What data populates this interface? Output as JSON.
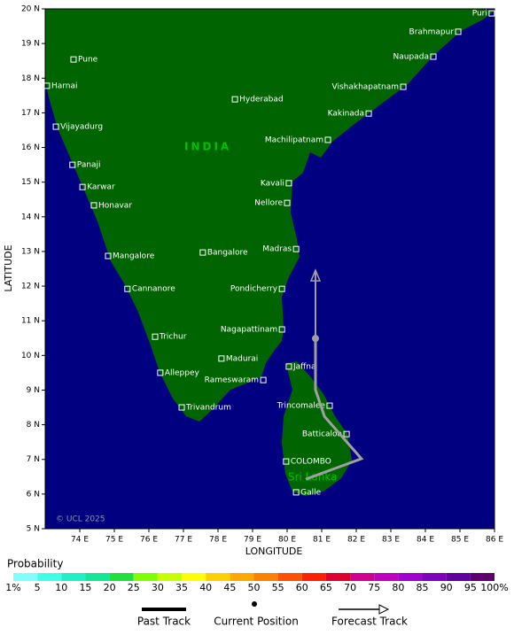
{
  "map": {
    "xlim": [
      73,
      86
    ],
    "ylim": [
      5,
      20
    ],
    "xticks": [
      {
        "value": 74,
        "label": "74 E"
      },
      {
        "value": 75,
        "label": "75 E"
      },
      {
        "value": 76,
        "label": "76 E"
      },
      {
        "value": 77,
        "label": "77 E"
      },
      {
        "value": 78,
        "label": "78 E"
      },
      {
        "value": 79,
        "label": "79 E"
      },
      {
        "value": 80,
        "label": "80 E"
      },
      {
        "value": 81,
        "label": "81 E"
      },
      {
        "value": 82,
        "label": "82 E"
      },
      {
        "value": 83,
        "label": "83 E"
      },
      {
        "value": 84,
        "label": "84 E"
      },
      {
        "value": 85,
        "label": "85 E"
      },
      {
        "value": 86,
        "label": "86 E"
      }
    ],
    "yticks": [
      {
        "value": 5,
        "label": "5 N"
      },
      {
        "value": 6,
        "label": "6 N"
      },
      {
        "value": 7,
        "label": "7 N"
      },
      {
        "value": 8,
        "label": "8 N"
      },
      {
        "value": 9,
        "label": "9 N"
      },
      {
        "value": 10,
        "label": "10 N"
      },
      {
        "value": 11,
        "label": "11 N"
      },
      {
        "value": 12,
        "label": "12 N"
      },
      {
        "value": 13,
        "label": "13 N"
      },
      {
        "value": 14,
        "label": "14 N"
      },
      {
        "value": 15,
        "label": "15 N"
      },
      {
        "value": 16,
        "label": "16 N"
      },
      {
        "value": 17,
        "label": "17 N"
      },
      {
        "value": 18,
        "label": "18 N"
      },
      {
        "value": 19,
        "label": "19 N"
      },
      {
        "value": 20,
        "label": "20 N"
      }
    ],
    "xlabel": "LONGITUDE",
    "ylabel": "LATITUDE",
    "country_labels": [
      "INDIA",
      "Sri Lanka"
    ],
    "copyright": "© UCL 2025",
    "cities": [
      {
        "name": "Puri",
        "lon": 85.92,
        "lat": 19.87
      },
      {
        "name": "Brahmapur",
        "lon": 84.95,
        "lat": 19.34
      },
      {
        "name": "Naupada",
        "lon": 84.23,
        "lat": 18.62
      },
      {
        "name": "Vishakhapatnam",
        "lon": 83.36,
        "lat": 17.75
      },
      {
        "name": "Kakinada",
        "lon": 82.36,
        "lat": 16.98
      },
      {
        "name": "Machilipatnam",
        "lon": 81.18,
        "lat": 16.22
      },
      {
        "name": "Kavali",
        "lon": 80.05,
        "lat": 14.97
      },
      {
        "name": "Nellore",
        "lon": 80.0,
        "lat": 14.4
      },
      {
        "name": "Madras",
        "lon": 80.26,
        "lat": 13.07
      },
      {
        "name": "Pondicherry",
        "lon": 79.85,
        "lat": 11.92
      },
      {
        "name": "Nagapattinam",
        "lon": 79.85,
        "lat": 10.75
      },
      {
        "name": "Rameswaram",
        "lon": 79.31,
        "lat": 9.29
      },
      {
        "name": "Trincomalee",
        "lon": 81.23,
        "lat": 8.55
      },
      {
        "name": "Batticaloa",
        "lon": 81.72,
        "lat": 7.73
      },
      {
        "name": "Jaffna",
        "lon": 80.05,
        "lat": 9.68
      },
      {
        "name": "COLOMBO",
        "lon": 79.97,
        "lat": 6.94
      },
      {
        "name": "Galle",
        "lon": 80.26,
        "lat": 6.05
      },
      {
        "name": "Madurai",
        "lon": 78.1,
        "lat": 9.91
      },
      {
        "name": "Trivandrum",
        "lon": 76.95,
        "lat": 8.5
      },
      {
        "name": "Alleppey",
        "lon": 76.33,
        "lat": 9.5
      },
      {
        "name": "Trichur",
        "lon": 76.18,
        "lat": 10.54
      },
      {
        "name": "Cannanore",
        "lon": 75.38,
        "lat": 11.92
      },
      {
        "name": "Mangalore",
        "lon": 74.82,
        "lat": 12.87
      },
      {
        "name": "Bangalore",
        "lon": 77.56,
        "lat": 12.97
      },
      {
        "name": "Hyderabad",
        "lon": 78.49,
        "lat": 17.39
      },
      {
        "name": "Honavar",
        "lon": 74.41,
        "lat": 14.33
      },
      {
        "name": "Karwar",
        "lon": 74.08,
        "lat": 14.86
      },
      {
        "name": "Panaji",
        "lon": 73.79,
        "lat": 15.5
      },
      {
        "name": "Vijayadurg",
        "lon": 73.31,
        "lat": 16.6
      },
      {
        "name": "Harnai",
        "lon": 73.05,
        "lat": 17.78
      },
      {
        "name": "Pune",
        "lon": 73.82,
        "lat": 18.54
      }
    ],
    "past_track": {
      "lon": [
        80.54,
        82.15,
        81.08,
        80.82,
        80.82
      ],
      "lat": [
        6.43,
        7.02,
        8.24,
        9.01,
        10.49
      ],
      "color": "#a0a0a0"
    },
    "current_position": {
      "lon": 80.82,
      "lat": 10.49,
      "color": "#a0a0a0"
    },
    "forecast_track": {
      "lon": [
        80.82,
        80.82
      ],
      "lat": [
        10.49,
        12.46
      ],
      "color": "#a0a0a0"
    }
  },
  "probability": {
    "title": "Probability",
    "levels": [
      {
        "value": 1,
        "label": "1%"
      },
      5,
      10,
      15,
      20,
      25,
      30,
      35,
      40,
      45,
      50,
      55,
      60,
      65,
      70,
      75,
      80,
      85,
      90,
      95,
      {
        "value": 100,
        "label": "100%"
      }
    ],
    "colors": [
      "#80ffff",
      "#40ffe8",
      "#20f0c8",
      "#10e898",
      "#20e040",
      "#80ff00",
      "#c8ff00",
      "#ffff00",
      "#ffd000",
      "#ffa800",
      "#ff8000",
      "#ff5000",
      "#ff2000",
      "#e00030",
      "#d00090",
      "#c000c0",
      "#a000d0",
      "#8000c0",
      "#6000a0",
      "#600070"
    ]
  },
  "legend": {
    "items": [
      "Past Track",
      "Current Position",
      "Forecast Track"
    ]
  }
}
